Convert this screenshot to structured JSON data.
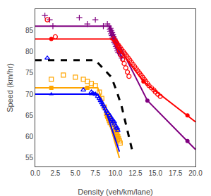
{
  "chart_data": {
    "type": "line",
    "xlabel": "Density (veh/km/lane)",
    "ylabel": "Speed (km/hr)",
    "xlim": [
      0,
      20
    ],
    "ylim": [
      53,
      90
    ],
    "xticks": [
      {
        "value": 0,
        "label": "0.0"
      },
      2.5,
      {
        "value": 5,
        "label": "5.0"
      },
      7.5,
      {
        "value": 10,
        "label": "10.0"
      },
      12.5,
      {
        "value": 15,
        "label": "15.0"
      },
      17.5,
      {
        "value": 20,
        "label": "20.0"
      }
    ],
    "yticks": [
      55,
      60,
      65,
      70,
      75,
      80,
      85
    ],
    "grid": false,
    "series": [
      {
        "type": "scatter",
        "marker": "plus",
        "color": "purple",
        "x": [
          1.2,
          1.8,
          2.2,
          5.5,
          6.5,
          7.5,
          8.5,
          9.0,
          9.2,
          9.4,
          9.5,
          9.6,
          9.7,
          9.8,
          9.9,
          10.0,
          10.1,
          10.2,
          10.3,
          10.4,
          10.5,
          10.6,
          10.7,
          10.8,
          9.3,
          9.35,
          9.45,
          9.55,
          9.65,
          9.75,
          9.85,
          9.95,
          10.05,
          10.15,
          10.25,
          10.35
        ],
        "values": [
          88.5,
          87.5,
          86.0,
          88.0,
          86.5,
          87.5,
          86.0,
          86.5,
          86.0,
          85.5,
          85.0,
          84.5,
          84.0,
          83.5,
          83.0,
          82.5,
          82.0,
          81.5,
          81.0,
          80.5,
          80.0,
          79.5,
          79.0,
          78.5,
          85.2,
          84.8,
          84.2,
          83.8,
          83.2,
          82.8,
          82.2,
          81.8,
          81.2,
          80.8,
          80.2,
          79.8
        ]
      },
      {
        "type": "line",
        "line_style": "solid",
        "color": "purple",
        "x": [
          0.0,
          9.3,
          14.0,
          19.0,
          20.0
        ],
        "values": [
          86.0,
          86.0,
          68.5,
          59.0,
          57.0
        ]
      },
      {
        "type": "scatter",
        "marker": "circle",
        "color": "purple",
        "x": [
          14.0,
          19.0
        ],
        "values": [
          68.5,
          59.0
        ]
      },
      {
        "type": "scatter",
        "marker": "circle-open",
        "color": "red",
        "x": [
          1.5,
          2.5,
          9.8,
          10.0,
          10.2,
          10.4,
          10.6,
          10.8,
          11.0,
          11.2,
          11.4,
          11.6,
          11.8,
          12.0,
          12.2,
          12.4,
          12.6,
          12.8,
          13.0,
          13.2,
          13.4,
          13.6,
          13.8,
          14.0,
          14.2,
          14.5,
          14.8,
          15.0,
          15.3,
          15.6,
          10.1,
          10.3,
          10.5,
          10.7,
          10.9,
          11.1,
          11.3,
          11.5,
          11.7
        ],
        "values": [
          87.5,
          83.5,
          83.0,
          82.5,
          82.0,
          81.5,
          81.0,
          80.5,
          80.0,
          79.5,
          79.0,
          78.5,
          78.0,
          77.5,
          77.0,
          76.5,
          76.0,
          75.5,
          75.0,
          74.5,
          74.0,
          73.5,
          73.0,
          72.5,
          72.0,
          71.5,
          71.0,
          70.5,
          70.0,
          69.5,
          82.2,
          81.2,
          80.2,
          79.2,
          78.2,
          77.2,
          76.2,
          75.2,
          74.2
        ]
      },
      {
        "type": "line",
        "line_style": "solid",
        "color": "red",
        "x": [
          0.0,
          9.5,
          13.5,
          19.0,
          20.0
        ],
        "values": [
          83.0,
          83.0,
          73.0,
          65.0,
          63.5
        ]
      },
      {
        "type": "scatter",
        "marker": "circle",
        "color": "red",
        "x": [
          2.0,
          13.5,
          19.0
        ],
        "values": [
          83.0,
          73.0,
          65.0
        ]
      },
      {
        "type": "scatter",
        "marker": "square-open",
        "color": "orange",
        "x": [
          2.0,
          3.5,
          5.0,
          6.0,
          6.5,
          7.0,
          7.5,
          8.0,
          8.3,
          8.6,
          8.9,
          9.0,
          9.2,
          9.4,
          9.6,
          9.8,
          10.0,
          10.1,
          10.2,
          10.3,
          10.4,
          10.5,
          10.6,
          9.05,
          9.15,
          9.25,
          9.35,
          9.55,
          9.65,
          9.75,
          9.85,
          9.95,
          10.05,
          10.15,
          10.25
        ],
        "values": [
          73.5,
          74.5,
          74.0,
          73.5,
          73.0,
          72.5,
          72.0,
          70.5,
          69.0,
          67.0,
          65.5,
          65.0,
          64.5,
          64.0,
          63.0,
          62.0,
          61.5,
          61.0,
          60.5,
          60.0,
          59.5,
          59.0,
          58.5,
          64.8,
          64.3,
          63.8,
          63.3,
          62.8,
          62.3,
          61.8,
          61.3,
          60.8,
          60.3,
          59.8,
          59.3
        ]
      },
      {
        "type": "line",
        "line_style": "solid",
        "color": "orange",
        "x": [
          0.0,
          7.8,
          9.0,
          10.5
        ],
        "values": [
          71.5,
          71.5,
          65.0,
          55.0
        ]
      },
      {
        "type": "scatter",
        "marker": "square",
        "color": "orange",
        "x": [
          2.0,
          6.5
        ],
        "values": [
          71.5,
          71.5
        ]
      },
      {
        "type": "scatter",
        "marker": "triangle-up-open",
        "color": "blue",
        "x": [
          1.5,
          6.0,
          7.0,
          7.5,
          8.0,
          8.3,
          8.6,
          8.9,
          9.1,
          9.3,
          9.5,
          9.7,
          9.9,
          10.1,
          10.3,
          7.2,
          7.8,
          8.15,
          8.45,
          8.75,
          9.05,
          9.25,
          9.45,
          9.65,
          9.85,
          10.05,
          10.25
        ],
        "values": [
          78.5,
          71.0,
          70.5,
          70.0,
          69.0,
          68.0,
          67.0,
          66.0,
          65.5,
          65.0,
          64.0,
          63.5,
          63.0,
          62.0,
          61.5,
          70.2,
          69.5,
          68.5,
          67.5,
          66.5,
          65.5,
          65.0,
          64.5,
          64.0,
          63.5,
          62.5,
          62.0
        ]
      },
      {
        "type": "line",
        "line_style": "solid",
        "color": "blue",
        "x": [
          0.0,
          7.8,
          9.0,
          10.5
        ],
        "values": [
          70.0,
          70.0,
          65.0,
          56.5
        ]
      },
      {
        "type": "scatter",
        "marker": "triangle-up",
        "color": "blue",
        "x": [
          2.0,
          7.0
        ],
        "values": [
          70.0,
          70.0
        ]
      },
      {
        "type": "line",
        "line_style": "dashed",
        "color": "black",
        "x": [
          0.0,
          7.5,
          9.5,
          10.2,
          10.8,
          11.3,
          11.8,
          12.2
        ],
        "values": [
          78.0,
          78.0,
          74.0,
          70.5,
          67.0,
          63.0,
          59.0,
          56.0
        ]
      }
    ]
  }
}
